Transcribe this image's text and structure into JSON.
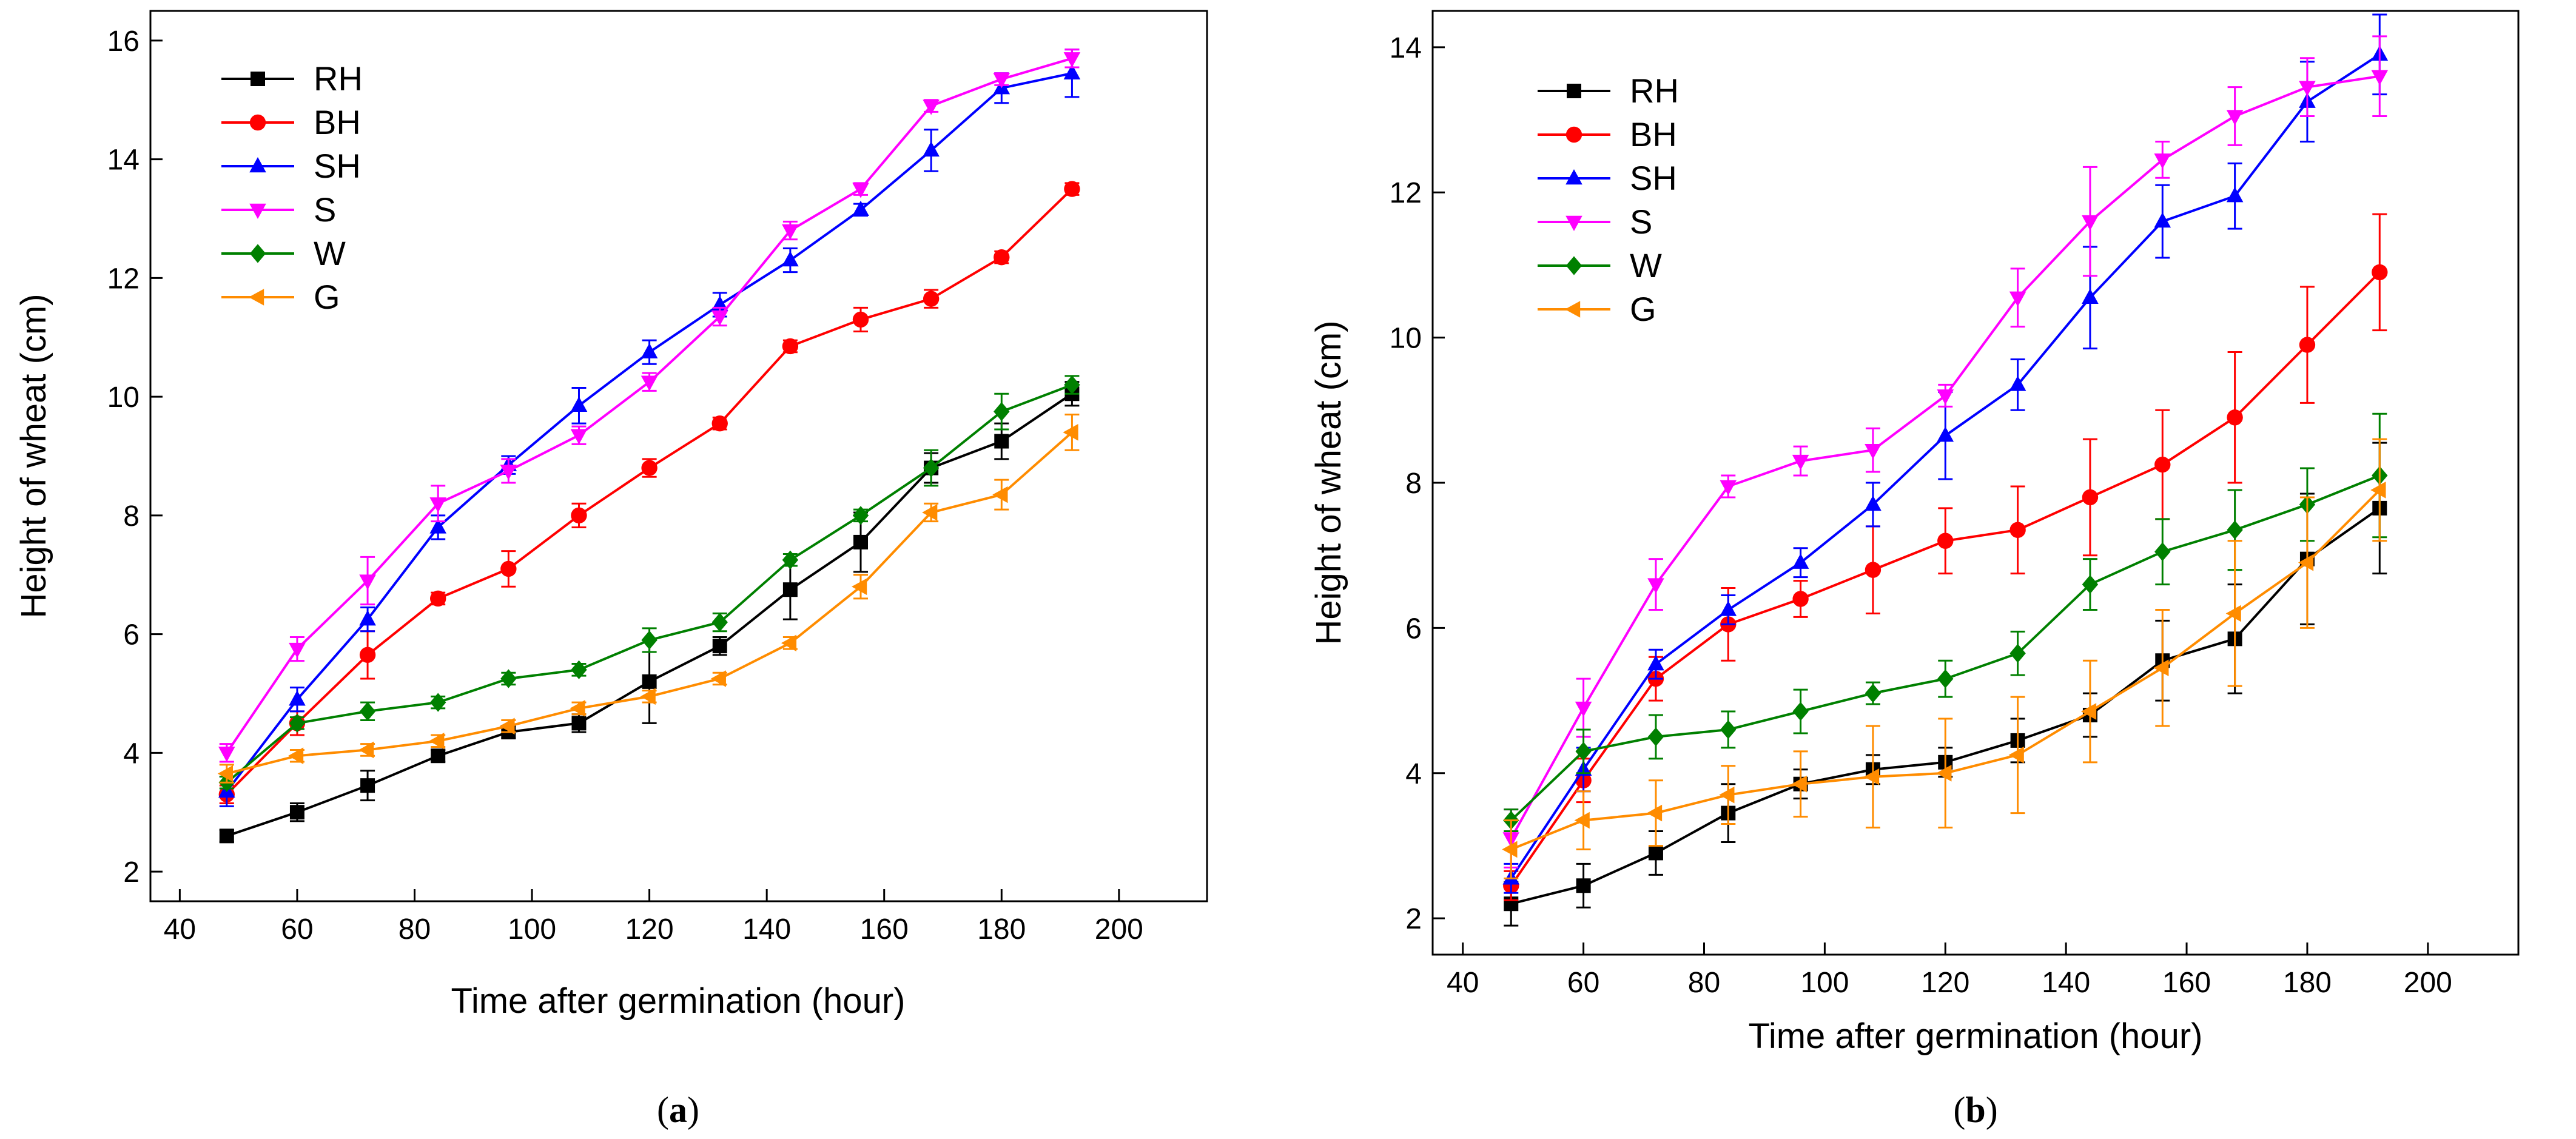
{
  "chart_data": [
    {
      "type": "line",
      "panel_label": "a",
      "xlabel": "Time after germination (hour)",
      "ylabel": "Height of wheat (cm)",
      "xlim": [
        35,
        215
      ],
      "ylim": [
        1.5,
        16.5
      ],
      "xticks": [
        40,
        60,
        80,
        100,
        120,
        140,
        160,
        180,
        200
      ],
      "yticks": [
        2,
        4,
        6,
        8,
        10,
        12,
        14,
        16
      ],
      "legend_position": "top-left",
      "grid": false,
      "x": [
        48,
        60,
        72,
        84,
        96,
        108,
        120,
        132,
        144,
        156,
        168,
        180,
        192
      ],
      "series": [
        {
          "name": "RH",
          "color": "#000000",
          "marker": "square",
          "values": [
            2.6,
            3.0,
            3.45,
            3.95,
            4.35,
            4.5,
            5.2,
            5.8,
            6.75,
            7.55,
            8.8,
            9.25,
            10.05
          ],
          "errors": [
            0.1,
            0.15,
            0.25,
            0.1,
            0.1,
            0.15,
            0.7,
            0.15,
            0.5,
            0.5,
            0.25,
            0.3,
            0.2
          ]
        },
        {
          "name": "BH",
          "color": "#ff0000",
          "marker": "circle",
          "values": [
            3.3,
            4.5,
            5.65,
            6.6,
            7.1,
            8.0,
            8.8,
            9.55,
            10.85,
            11.3,
            11.65,
            12.35,
            13.5
          ],
          "errors": [
            0.15,
            0.2,
            0.4,
            0.1,
            0.3,
            0.2,
            0.15,
            0.1,
            0.1,
            0.2,
            0.15,
            0.1,
            0.1
          ]
        },
        {
          "name": "SH",
          "color": "#0000ff",
          "marker": "triangle-up",
          "values": [
            3.35,
            4.9,
            6.25,
            7.8,
            8.85,
            9.85,
            10.75,
            11.55,
            12.3,
            13.15,
            14.15,
            15.2,
            15.45
          ],
          "errors": [
            0.25,
            0.2,
            0.2,
            0.2,
            0.15,
            0.3,
            0.2,
            0.2,
            0.2,
            0.1,
            0.35,
            0.25,
            0.4
          ]
        },
        {
          "name": "S",
          "color": "#ff00ff",
          "marker": "triangle-down",
          "values": [
            4.0,
            5.75,
            6.9,
            8.2,
            8.75,
            9.35,
            10.25,
            11.35,
            12.8,
            13.5,
            14.9,
            15.35,
            15.7
          ],
          "errors": [
            0.15,
            0.2,
            0.4,
            0.3,
            0.2,
            0.15,
            0.15,
            0.15,
            0.15,
            0.1,
            0.1,
            0.1,
            0.15
          ]
        },
        {
          "name": "W",
          "color": "#008000",
          "marker": "diamond",
          "values": [
            3.5,
            4.5,
            4.7,
            4.85,
            5.25,
            5.4,
            5.9,
            6.2,
            7.25,
            8.0,
            8.8,
            9.75,
            10.2
          ],
          "errors": [
            0.1,
            0.1,
            0.15,
            0.1,
            0.1,
            0.1,
            0.2,
            0.15,
            0.1,
            0.1,
            0.3,
            0.3,
            0.15
          ]
        },
        {
          "name": "G",
          "color": "#ff8c00",
          "marker": "triangle-left",
          "values": [
            3.65,
            3.95,
            4.05,
            4.2,
            4.45,
            4.75,
            4.95,
            5.25,
            5.85,
            6.8,
            8.05,
            8.35,
            9.4
          ],
          "errors": [
            0.15,
            0.1,
            0.1,
            0.1,
            0.1,
            0.1,
            0.1,
            0.1,
            0.1,
            0.2,
            0.15,
            0.25,
            0.3
          ]
        }
      ]
    },
    {
      "type": "line",
      "panel_label": "b",
      "xlabel": "Time after germination (hour)",
      "ylabel": "Height of wheat (cm)",
      "xlim": [
        35,
        215
      ],
      "ylim": [
        1.5,
        14.5
      ],
      "xticks": [
        40,
        60,
        80,
        100,
        120,
        140,
        160,
        180,
        200
      ],
      "yticks": [
        2,
        4,
        6,
        8,
        10,
        12,
        14
      ],
      "legend_position": "top-left",
      "grid": false,
      "x": [
        48,
        60,
        72,
        84,
        96,
        108,
        120,
        132,
        144,
        156,
        168,
        180,
        192
      ],
      "series": [
        {
          "name": "RH",
          "color": "#000000",
          "marker": "square",
          "values": [
            2.2,
            2.45,
            2.9,
            3.45,
            3.85,
            4.05,
            4.15,
            4.45,
            4.8,
            5.55,
            5.85,
            6.95,
            7.65
          ],
          "errors": [
            0.3,
            0.3,
            0.3,
            0.4,
            0.2,
            0.2,
            0.2,
            0.3,
            0.3,
            0.55,
            0.75,
            0.9,
            0.9
          ]
        },
        {
          "name": "BH",
          "color": "#ff0000",
          "marker": "circle",
          "values": [
            2.45,
            3.9,
            5.3,
            6.05,
            6.4,
            6.8,
            7.2,
            7.35,
            7.8,
            8.25,
            8.9,
            9.9,
            10.9
          ],
          "errors": [
            0.2,
            0.3,
            0.3,
            0.5,
            0.25,
            0.6,
            0.45,
            0.6,
            0.8,
            0.75,
            0.9,
            0.8,
            0.8
          ]
        },
        {
          "name": "SH",
          "color": "#0000ff",
          "marker": "triangle-up",
          "values": [
            2.55,
            4.05,
            5.5,
            6.25,
            6.9,
            7.7,
            8.65,
            9.35,
            10.55,
            11.6,
            11.95,
            13.25,
            13.9
          ],
          "errors": [
            0.2,
            0.3,
            0.2,
            0.2,
            0.2,
            0.3,
            0.6,
            0.35,
            0.7,
            0.5,
            0.45,
            0.55,
            0.55
          ]
        },
        {
          "name": "S",
          "color": "#ff00ff",
          "marker": "triangle-down",
          "values": [
            3.1,
            4.9,
            6.6,
            7.95,
            8.3,
            8.45,
            9.2,
            10.55,
            11.6,
            12.45,
            13.05,
            13.45,
            13.6
          ],
          "errors": [
            0.4,
            0.4,
            0.35,
            0.15,
            0.2,
            0.3,
            0.15,
            0.4,
            0.75,
            0.25,
            0.4,
            0.4,
            0.55
          ]
        },
        {
          "name": "W",
          "color": "#008000",
          "marker": "diamond",
          "values": [
            3.35,
            4.3,
            4.5,
            4.6,
            4.85,
            5.1,
            5.3,
            5.65,
            6.6,
            7.05,
            7.35,
            7.7,
            8.1
          ],
          "errors": [
            0.15,
            0.3,
            0.3,
            0.25,
            0.3,
            0.15,
            0.25,
            0.3,
            0.35,
            0.45,
            0.55,
            0.5,
            0.85
          ]
        },
        {
          "name": "G",
          "color": "#ff8c00",
          "marker": "triangle-left",
          "values": [
            2.95,
            3.35,
            3.45,
            3.7,
            3.85,
            3.95,
            4.0,
            4.25,
            4.85,
            5.45,
            6.2,
            6.9,
            7.9
          ],
          "errors": [
            0.4,
            0.4,
            0.45,
            0.4,
            0.45,
            0.7,
            0.75,
            0.8,
            0.7,
            0.8,
            1.0,
            0.9,
            0.7
          ]
        }
      ]
    }
  ]
}
